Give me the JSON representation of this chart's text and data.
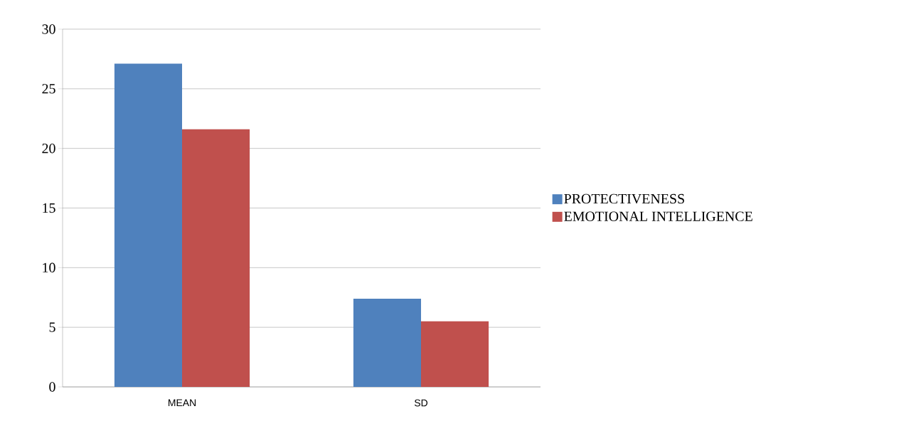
{
  "chart_data": {
    "type": "bar",
    "categories": [
      "MEAN",
      "SD"
    ],
    "series": [
      {
        "name": "PROTECTIVENESS",
        "color": "#4f81bd",
        "values": [
          27.1,
          7.4
        ]
      },
      {
        "name": "EMOTIONAL INTELLIGENCE",
        "color": "#c0504d",
        "values": [
          21.6,
          5.5
        ]
      }
    ],
    "ylim": [
      0,
      30
    ],
    "yticks": [
      0,
      5,
      10,
      15,
      20,
      25,
      30
    ],
    "grid": "y",
    "legend": "right"
  }
}
